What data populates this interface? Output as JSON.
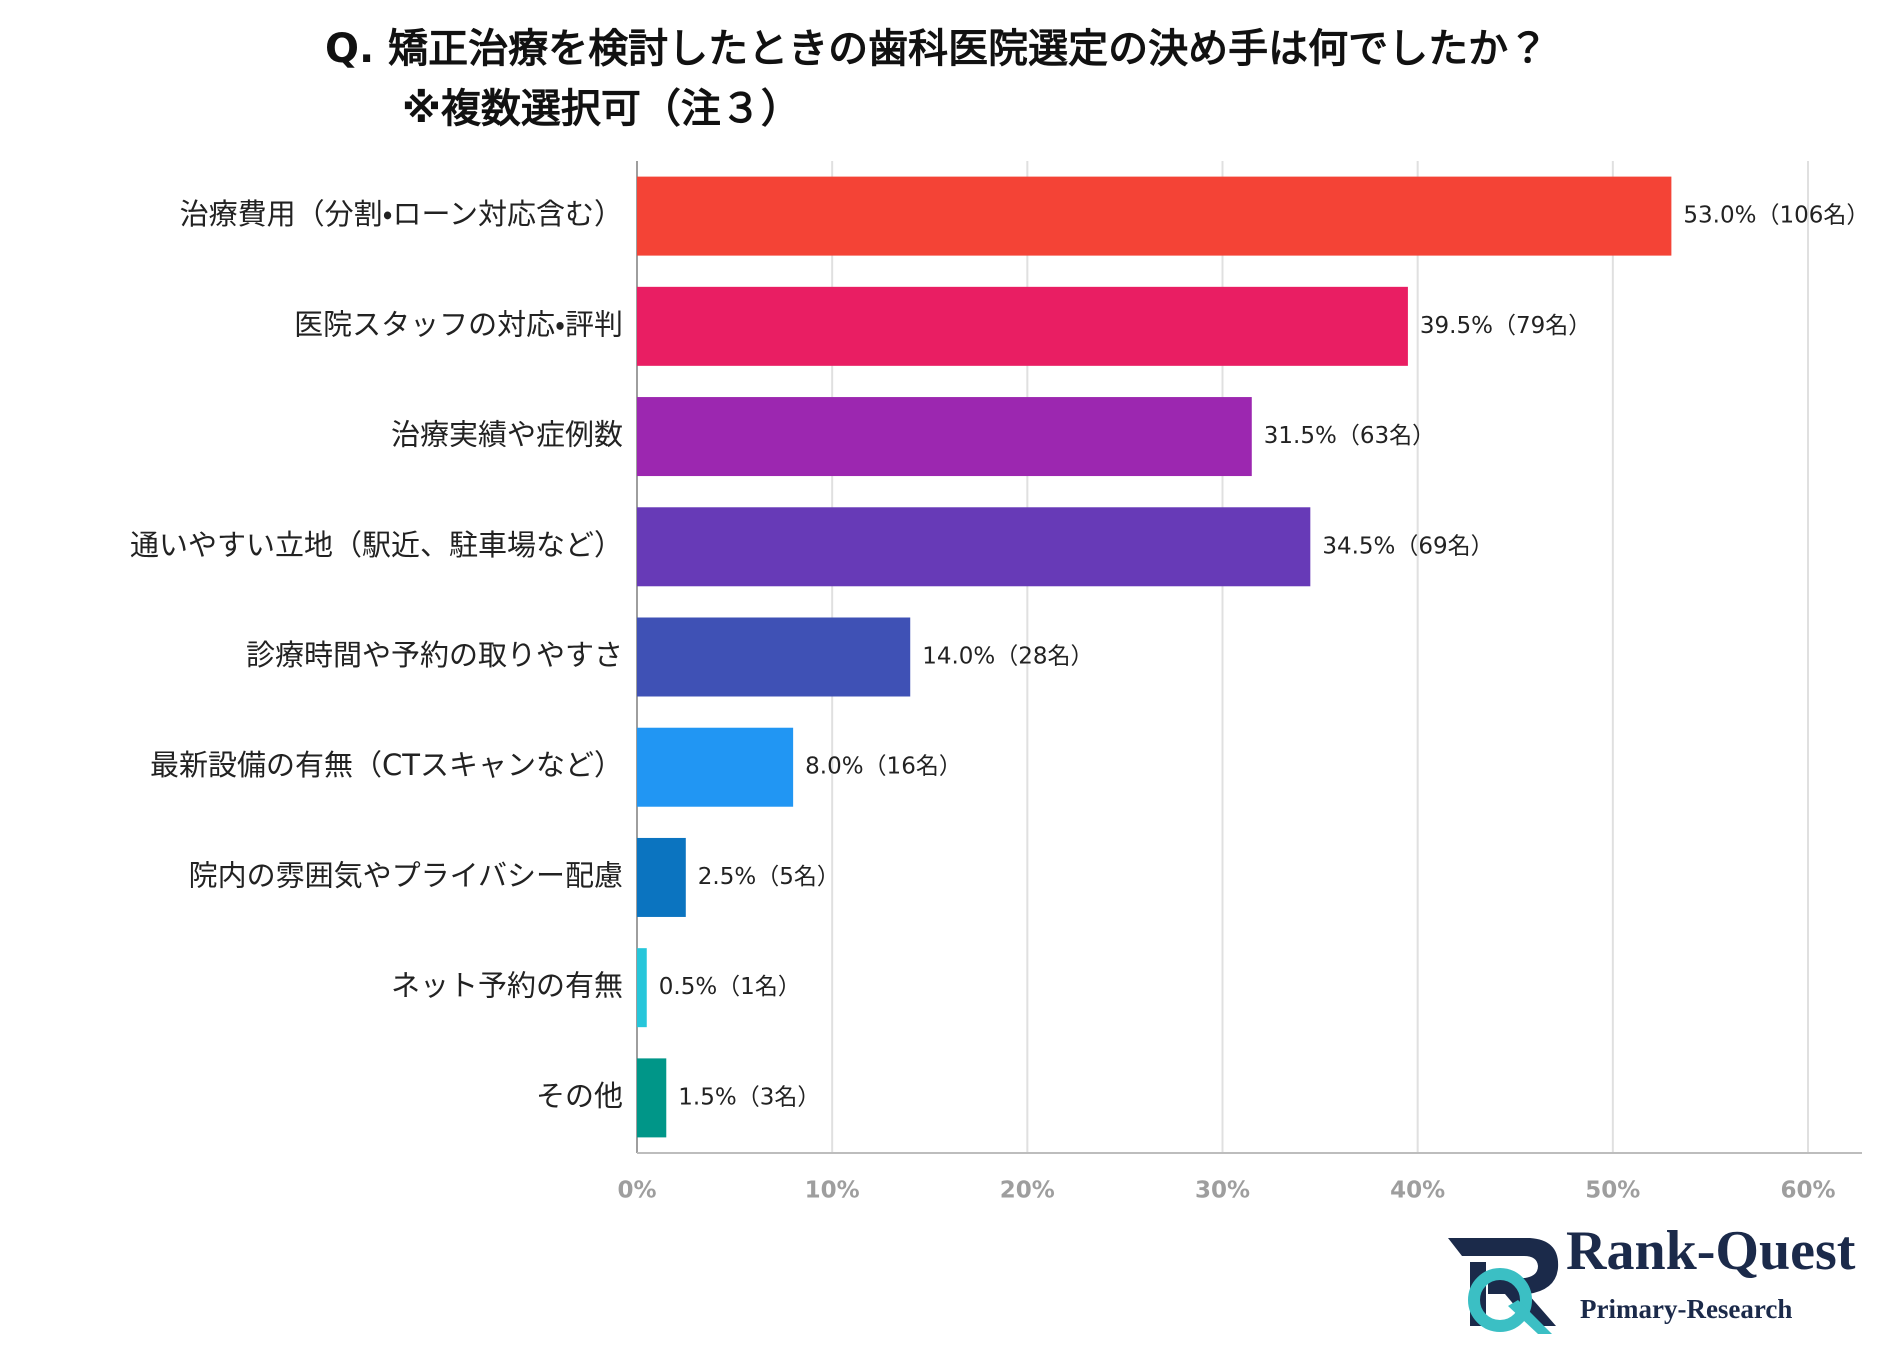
{
  "chart_data": {
    "type": "barh",
    "title": "Q.  矯正治療を検討したときの歯科医院選定の決め手は何でしたか？",
    "subtitle": "※複数選択可（注３）",
    "categories": [
      "治療費用（分割・ローン対応含む）",
      "医院スタッフの対応・評判",
      "治療実績や症例数",
      "通いやすい立地（駅近、駐車場など）",
      "診療時間や予約の取りやすさ",
      "最新設備の有無（CTスキャンなど）",
      "院内の雰囲気やプライバシー配慮",
      "ネット予約の有無",
      "その他"
    ],
    "values": [
      53.0,
      39.5,
      31.5,
      34.5,
      14.0,
      8.0,
      2.5,
      0.5,
      1.5
    ],
    "value_labels": [
      "53.0%（106名）",
      "39.5%（79名）",
      "31.5%（63名）",
      "34.5%（69名）",
      "14.0%（28名）",
      "8.0%（16名）",
      "2.5%（5名）",
      "0.5%（1名）",
      "1.5%（3名）"
    ],
    "colors": [
      "#f44336",
      "#e91e63",
      "#9c27b0",
      "#673ab7",
      "#3f51b5",
      "#2196f3",
      "#0b74c0",
      "#26c6da",
      "#009688"
    ],
    "xlim": [
      0,
      60
    ],
    "xticks": [
      {
        "value": 0,
        "label": "0%"
      },
      {
        "value": 10,
        "label": "10%"
      },
      {
        "value": 20,
        "label": "20%"
      },
      {
        "value": 30,
        "label": "30%"
      },
      {
        "value": 40,
        "label": "40%"
      },
      {
        "value": 50,
        "label": "50%"
      },
      {
        "value": 60,
        "label": "60%"
      }
    ],
    "grid": true
  },
  "logo": {
    "name": "Rank-Quest",
    "tagline": "Primary-Research"
  }
}
